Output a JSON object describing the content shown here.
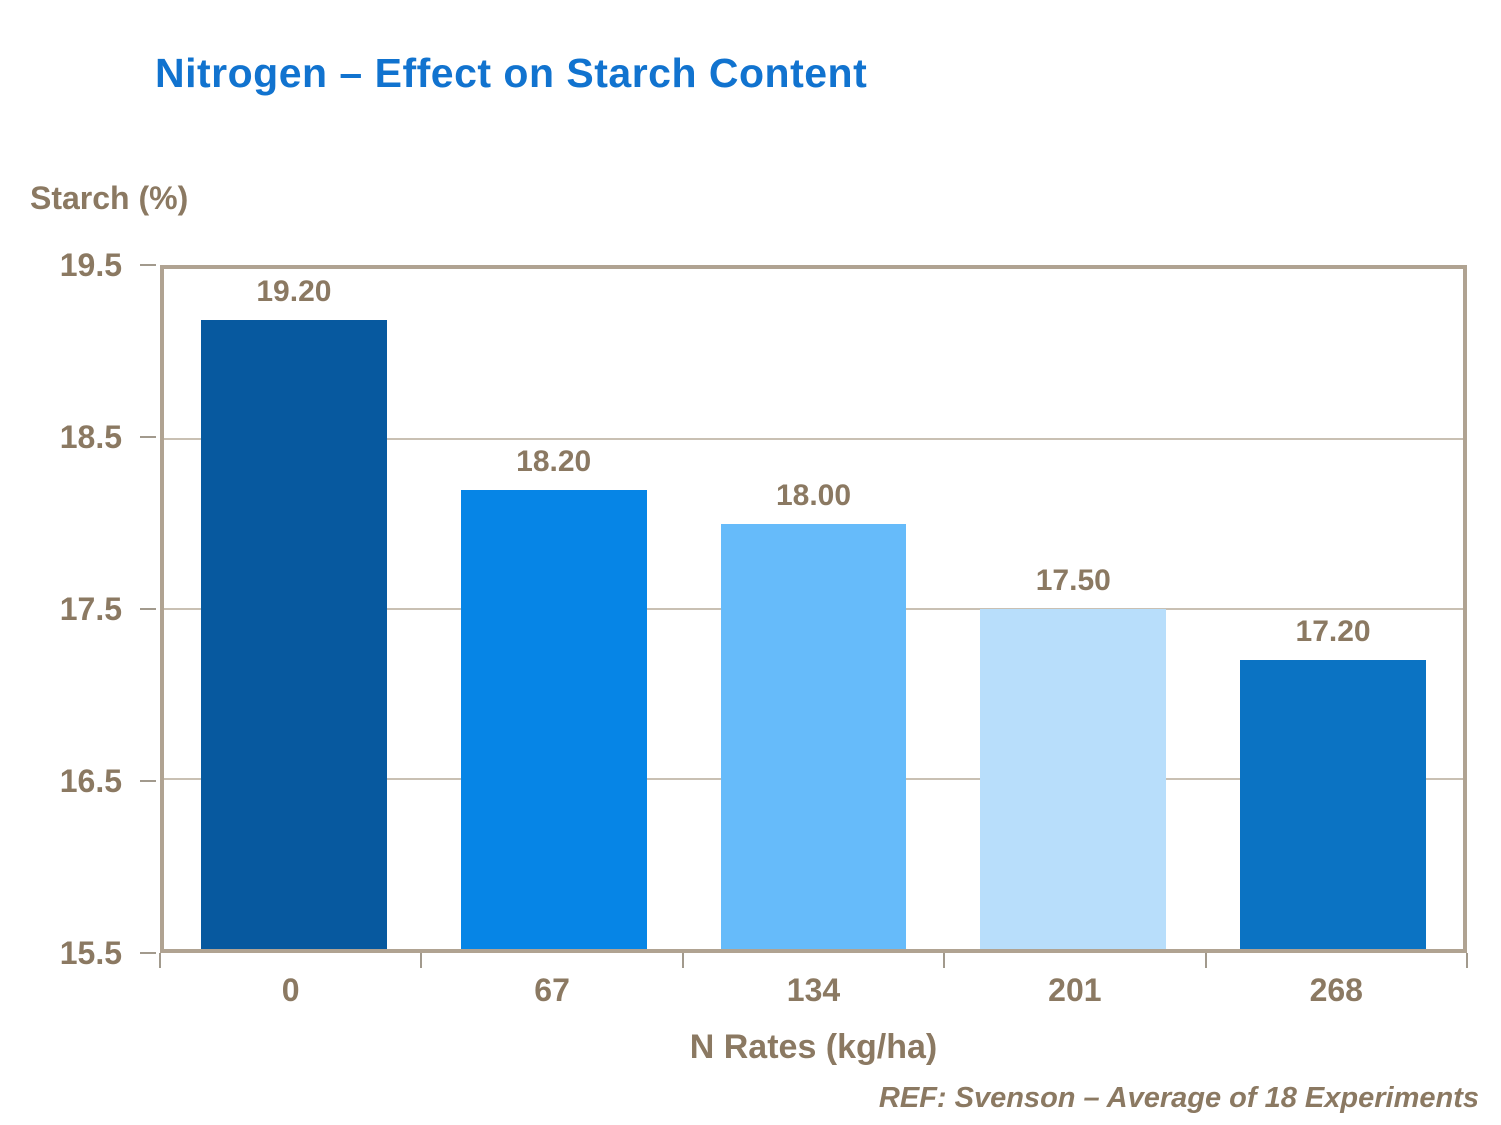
{
  "title": "Nitrogen – Effect on Starch Content",
  "y_axis_label": "Starch (%)",
  "x_axis_label": "N Rates (kg/ha)",
  "footnote": "REF: Svenson – Average of 18 Experiments",
  "colors": {
    "title_blue": "#1173cf",
    "text_brown": "#8b7962",
    "plot_border": "#b0a392",
    "gridline": "#c9c0b3",
    "tick": "#a29a8d"
  },
  "chart_data": {
    "type": "bar",
    "title": "Nitrogen – Effect on Starch Content",
    "xlabel": "N Rates (kg/ha)",
    "ylabel": "Starch (%)",
    "categories": [
      "0",
      "67",
      "134",
      "201",
      "268"
    ],
    "values": [
      19.2,
      18.2,
      18.0,
      17.5,
      17.2
    ],
    "value_labels": [
      "19.20",
      "18.20",
      "18.00",
      "17.50",
      "17.20"
    ],
    "bar_colors": [
      "#07599f",
      "#0685e6",
      "#66bbfa",
      "#b8defb",
      "#0b73c3"
    ],
    "ylim": [
      15.5,
      19.5
    ],
    "ytick_step": 1.0,
    "ytick_labels": [
      "19.5",
      "18.5",
      "17.5",
      "16.5",
      "15.5"
    ],
    "grid": true,
    "legend": "none",
    "annotation": "REF: Svenson – Average of 18 Experiments"
  }
}
